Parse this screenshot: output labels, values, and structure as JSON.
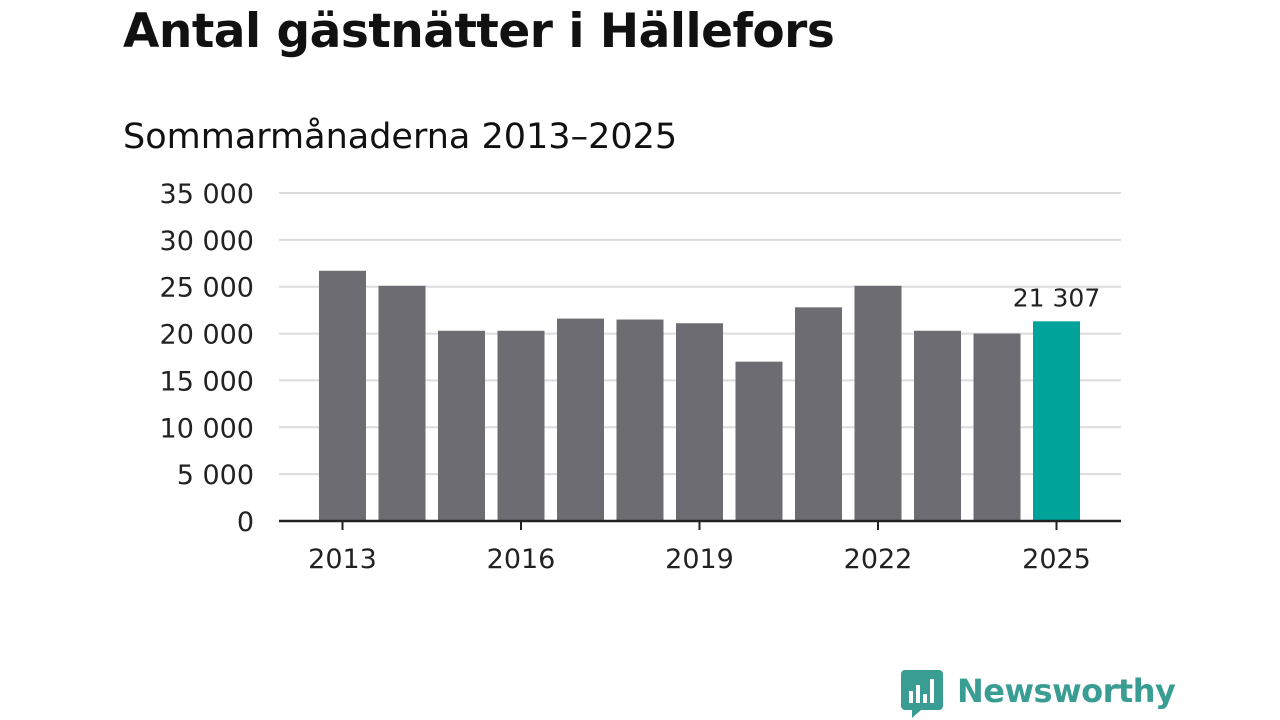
{
  "title": "Antal gästnätter i Hällefors",
  "subtitle": "Sommarmånaderna 2013–2025",
  "brand": {
    "name": "Newsworthy",
    "icon": "newsworthy-chat-bars-icon",
    "color": "#3a9d93"
  },
  "chart_data": {
    "type": "bar",
    "categories": [
      "2013",
      "2014",
      "2015",
      "2016",
      "2017",
      "2018",
      "2019",
      "2020",
      "2021",
      "2022",
      "2023",
      "2024",
      "2025"
    ],
    "values": [
      26700,
      25100,
      20300,
      20300,
      21600,
      21500,
      21100,
      17000,
      22800,
      25100,
      20300,
      20000,
      21307
    ],
    "ylim": [
      0,
      35000
    ],
    "yticks": [
      0,
      5000,
      10000,
      15000,
      20000,
      25000,
      30000,
      35000
    ],
    "ytick_labels": [
      "0",
      "5 000",
      "10 000",
      "15 000",
      "20 000",
      "25 000",
      "30 000",
      "35 000"
    ],
    "xtick_labels": [
      "2013",
      "2016",
      "2019",
      "2022",
      "2025"
    ],
    "highlight_index": 12,
    "data_label": {
      "index": 12,
      "text": "21 307"
    },
    "grid": true,
    "colors": {
      "bar": "#6d6c72",
      "highlight": "#00a399",
      "grid": "#dcdcdc",
      "axis": "#222222"
    }
  }
}
